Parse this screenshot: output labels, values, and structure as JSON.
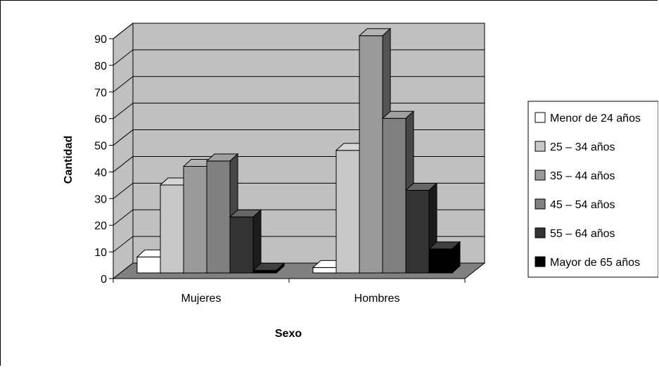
{
  "chart_data": {
    "type": "bar",
    "title": "",
    "xlabel": "Sexo",
    "ylabel": "Cantidad",
    "ylim": [
      0,
      90
    ],
    "yticks": [
      0,
      10,
      20,
      30,
      40,
      50,
      60,
      70,
      80,
      90
    ],
    "categories": [
      "Mujeres",
      "Hombres"
    ],
    "series": [
      {
        "name": "Menor de 24 años",
        "values": [
          6,
          2
        ],
        "color": "#ffffff"
      },
      {
        "name": "25 – 34 años",
        "values": [
          33,
          46
        ],
        "color": "#c8c8c8"
      },
      {
        "name": "35 – 44 años",
        "values": [
          40,
          89
        ],
        "color": "#9a9a9a"
      },
      {
        "name": "45 – 54 años",
        "values": [
          42,
          58
        ],
        "color": "#808080"
      },
      {
        "name": "55 – 64 años",
        "values": [
          21,
          31
        ],
        "color": "#333333"
      },
      {
        "name": "Mayor de 65 años",
        "values": [
          1,
          9
        ],
        "color": "#000000"
      }
    ],
    "grid": true,
    "legend_position": "right",
    "style": "3d-clustered-column",
    "wall_color": "#c0c0c0",
    "floor_color": "#808080"
  }
}
